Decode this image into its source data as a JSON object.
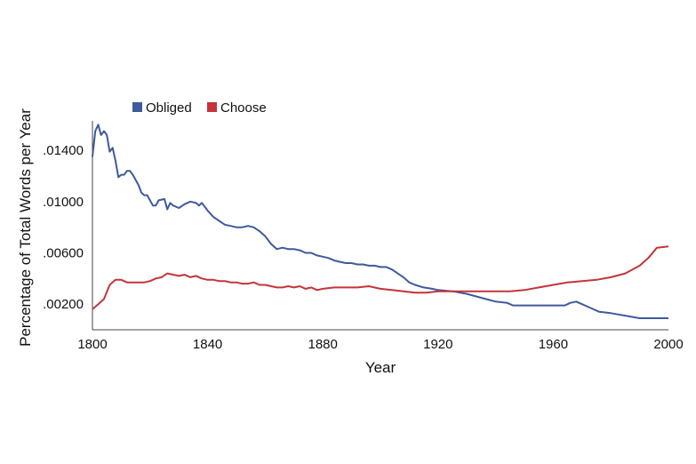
{
  "chart_data": {
    "type": "line",
    "xlabel": "Year",
    "ylabel": "Percentage of Total Words per Year",
    "xlim": [
      1800,
      2000
    ],
    "ylim": [
      0.0,
      0.0163
    ],
    "x_ticks": [
      1800,
      1840,
      1880,
      1920,
      1960,
      2000
    ],
    "x_tick_labels": [
      "1800",
      "1840",
      "1880",
      "1920",
      "1960",
      "2000"
    ],
    "y_ticks": [
      0.002,
      0.006,
      0.01,
      0.014
    ],
    "y_tick_labels": [
      ".00200",
      ".00600",
      ".01000",
      ".01400"
    ],
    "grid": false,
    "legend_position": "top-left",
    "series": [
      {
        "name": "Obliged",
        "color": "#3d5a9e",
        "points": [
          [
            1800,
            0.0135
          ],
          [
            1801,
            0.0155
          ],
          [
            1802,
            0.016
          ],
          [
            1803,
            0.0152
          ],
          [
            1804,
            0.0155
          ],
          [
            1805,
            0.0152
          ],
          [
            1806,
            0.0139
          ],
          [
            1807,
            0.0142
          ],
          [
            1808,
            0.0132
          ],
          [
            1809,
            0.0119
          ],
          [
            1810,
            0.0121
          ],
          [
            1811,
            0.0121
          ],
          [
            1812,
            0.0124
          ],
          [
            1813,
            0.0124
          ],
          [
            1814,
            0.0121
          ],
          [
            1816,
            0.0113
          ],
          [
            1817,
            0.0107
          ],
          [
            1818,
            0.0105
          ],
          [
            1819,
            0.0105
          ],
          [
            1820,
            0.0101
          ],
          [
            1821,
            0.0097
          ],
          [
            1822,
            0.0097
          ],
          [
            1823,
            0.0101
          ],
          [
            1825,
            0.0102
          ],
          [
            1826,
            0.0094
          ],
          [
            1827,
            0.0099
          ],
          [
            1828,
            0.0097
          ],
          [
            1830,
            0.0095
          ],
          [
            1832,
            0.0098
          ],
          [
            1834,
            0.01
          ],
          [
            1836,
            0.0099
          ],
          [
            1837,
            0.0097
          ],
          [
            1838,
            0.0099
          ],
          [
            1840,
            0.0093
          ],
          [
            1842,
            0.0088
          ],
          [
            1844,
            0.0085
          ],
          [
            1846,
            0.0082
          ],
          [
            1848,
            0.0081
          ],
          [
            1850,
            0.008
          ],
          [
            1852,
            0.008
          ],
          [
            1854,
            0.0081
          ],
          [
            1856,
            0.008
          ],
          [
            1858,
            0.0077
          ],
          [
            1860,
            0.0073
          ],
          [
            1862,
            0.0067
          ],
          [
            1864,
            0.0063
          ],
          [
            1866,
            0.0064
          ],
          [
            1868,
            0.0063
          ],
          [
            1870,
            0.0063
          ],
          [
            1872,
            0.0062
          ],
          [
            1874,
            0.006
          ],
          [
            1876,
            0.006
          ],
          [
            1878,
            0.0058
          ],
          [
            1880,
            0.0057
          ],
          [
            1882,
            0.0056
          ],
          [
            1884,
            0.0054
          ],
          [
            1886,
            0.0053
          ],
          [
            1888,
            0.0052
          ],
          [
            1890,
            0.0052
          ],
          [
            1892,
            0.0051
          ],
          [
            1894,
            0.0051
          ],
          [
            1896,
            0.005
          ],
          [
            1898,
            0.005
          ],
          [
            1900,
            0.0049
          ],
          [
            1902,
            0.0049
          ],
          [
            1904,
            0.0047
          ],
          [
            1906,
            0.0044
          ],
          [
            1908,
            0.0041
          ],
          [
            1910,
            0.0037
          ],
          [
            1912,
            0.0035
          ],
          [
            1915,
            0.0033
          ],
          [
            1918,
            0.0032
          ],
          [
            1920,
            0.0031
          ],
          [
            1925,
            0.003
          ],
          [
            1930,
            0.0028
          ],
          [
            1935,
            0.0025
          ],
          [
            1940,
            0.0022
          ],
          [
            1944,
            0.0021
          ],
          [
            1946,
            0.0019
          ],
          [
            1950,
            0.0019
          ],
          [
            1955,
            0.0019
          ],
          [
            1960,
            0.0019
          ],
          [
            1964,
            0.0019
          ],
          [
            1966,
            0.0021
          ],
          [
            1968,
            0.0022
          ],
          [
            1970,
            0.002
          ],
          [
            1973,
            0.0017
          ],
          [
            1976,
            0.0014
          ],
          [
            1980,
            0.0013
          ],
          [
            1985,
            0.0011
          ],
          [
            1990,
            0.0009
          ],
          [
            1995,
            0.0009
          ],
          [
            2000,
            0.0009
          ]
        ]
      },
      {
        "name": "Choose",
        "color": "#c4343a",
        "points": [
          [
            1800,
            0.0016
          ],
          [
            1802,
            0.002
          ],
          [
            1804,
            0.0024
          ],
          [
            1806,
            0.0035
          ],
          [
            1808,
            0.0039
          ],
          [
            1810,
            0.0039
          ],
          [
            1812,
            0.0037
          ],
          [
            1814,
            0.0037
          ],
          [
            1816,
            0.0037
          ],
          [
            1818,
            0.0037
          ],
          [
            1820,
            0.0038
          ],
          [
            1822,
            0.004
          ],
          [
            1824,
            0.0041
          ],
          [
            1826,
            0.0044
          ],
          [
            1828,
            0.0043
          ],
          [
            1830,
            0.0042
          ],
          [
            1832,
            0.0043
          ],
          [
            1834,
            0.0041
          ],
          [
            1836,
            0.0042
          ],
          [
            1838,
            0.004
          ],
          [
            1840,
            0.0039
          ],
          [
            1842,
            0.0039
          ],
          [
            1844,
            0.0038
          ],
          [
            1846,
            0.0038
          ],
          [
            1848,
            0.0037
          ],
          [
            1850,
            0.0037
          ],
          [
            1852,
            0.0036
          ],
          [
            1854,
            0.0036
          ],
          [
            1856,
            0.0037
          ],
          [
            1858,
            0.0035
          ],
          [
            1860,
            0.0035
          ],
          [
            1862,
            0.0034
          ],
          [
            1864,
            0.0033
          ],
          [
            1866,
            0.0033
          ],
          [
            1868,
            0.0034
          ],
          [
            1870,
            0.0033
          ],
          [
            1872,
            0.0034
          ],
          [
            1874,
            0.0032
          ],
          [
            1876,
            0.0033
          ],
          [
            1878,
            0.0031
          ],
          [
            1880,
            0.0032
          ],
          [
            1884,
            0.0033
          ],
          [
            1888,
            0.0033
          ],
          [
            1892,
            0.0033
          ],
          [
            1896,
            0.0034
          ],
          [
            1900,
            0.0032
          ],
          [
            1904,
            0.0031
          ],
          [
            1908,
            0.003
          ],
          [
            1912,
            0.0029
          ],
          [
            1916,
            0.0029
          ],
          [
            1920,
            0.003
          ],
          [
            1925,
            0.003
          ],
          [
            1930,
            0.003
          ],
          [
            1935,
            0.003
          ],
          [
            1940,
            0.003
          ],
          [
            1945,
            0.003
          ],
          [
            1950,
            0.0031
          ],
          [
            1955,
            0.0033
          ],
          [
            1960,
            0.0035
          ],
          [
            1965,
            0.0037
          ],
          [
            1970,
            0.0038
          ],
          [
            1975,
            0.0039
          ],
          [
            1980,
            0.0041
          ],
          [
            1985,
            0.0044
          ],
          [
            1990,
            0.005
          ],
          [
            1993,
            0.0056
          ],
          [
            1996,
            0.0064
          ],
          [
            2000,
            0.0065
          ]
        ]
      }
    ]
  }
}
